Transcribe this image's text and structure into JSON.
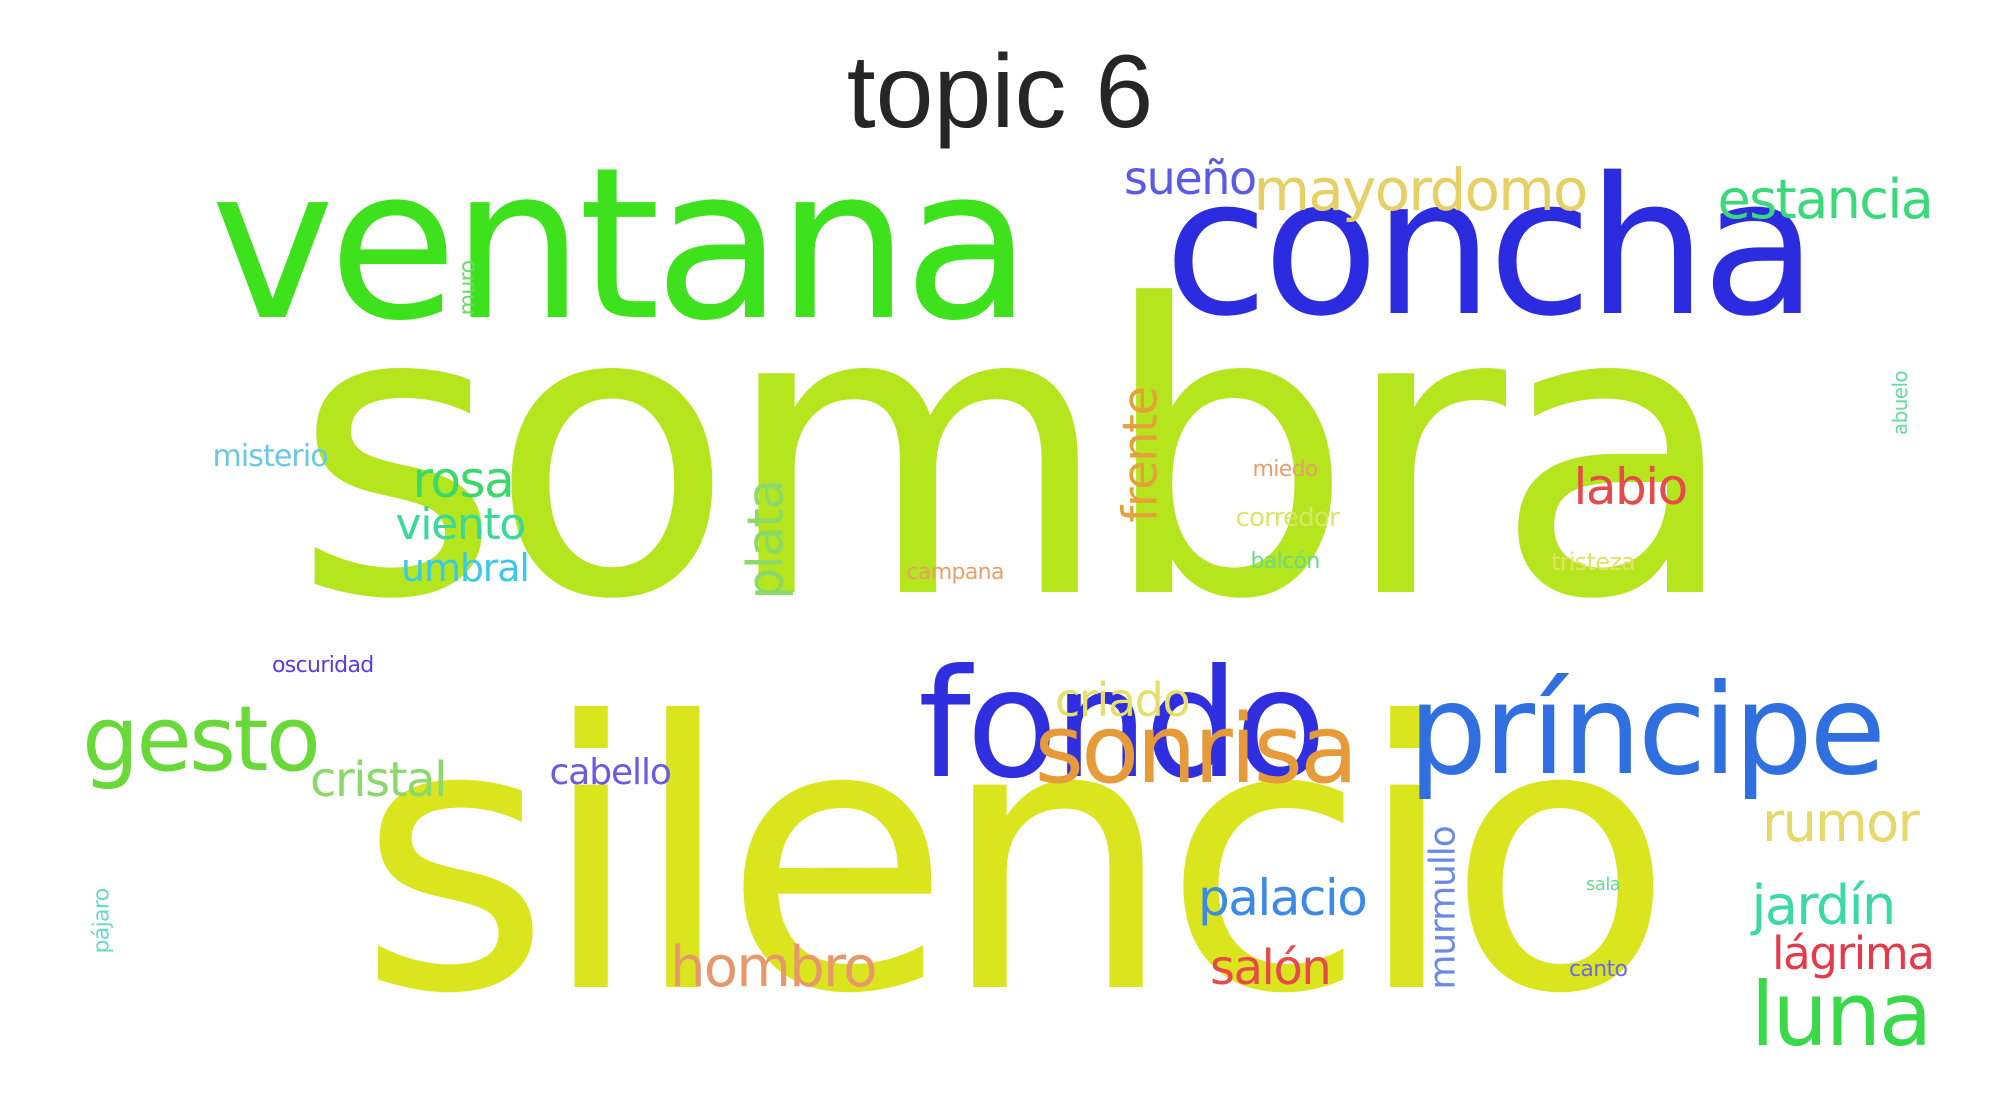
{
  "title": "topic 6",
  "words": [
    {
      "text": "sombra",
      "color": "#b5e61d"
    },
    {
      "text": "silencio",
      "color": "#dbe51e"
    },
    {
      "text": "ventana",
      "color": "#3de21c"
    },
    {
      "text": "concha",
      "color": "#2b2be0"
    },
    {
      "text": "fondo",
      "color": "#2f2fe0"
    },
    {
      "text": "príncipe",
      "color": "#2f6fe0"
    },
    {
      "text": "sonrisa",
      "color": "#e69a38"
    },
    {
      "text": "gesto",
      "color": "#69d93a"
    },
    {
      "text": "luna",
      "color": "#3ad94a"
    },
    {
      "text": "estancia",
      "color": "#3ad97a"
    },
    {
      "text": "mayordomo",
      "color": "#e6cf63"
    },
    {
      "text": "sueño",
      "color": "#5a5ae6"
    },
    {
      "text": "rumor",
      "color": "#e6d96a"
    },
    {
      "text": "jardín",
      "color": "#3ad9a5"
    },
    {
      "text": "lágrima",
      "color": "#e63a4a"
    },
    {
      "text": "hombro",
      "color": "#e6986a"
    },
    {
      "text": "palacio",
      "color": "#3a8ae6"
    },
    {
      "text": "salón",
      "color": "#e64a4a"
    },
    {
      "text": "labio",
      "color": "#e64a4a"
    },
    {
      "text": "criado",
      "color": "#e6e06a"
    },
    {
      "text": "cristal",
      "color": "#8ad96a"
    },
    {
      "text": "rosa",
      "color": "#3ad96a"
    },
    {
      "text": "viento",
      "color": "#3ad99a"
    },
    {
      "text": "umbral",
      "color": "#3acae6"
    },
    {
      "text": "plata",
      "color": "#8ad96a"
    },
    {
      "text": "frente",
      "color": "#e6a03a"
    },
    {
      "text": "misterio",
      "color": "#6ac8e6"
    },
    {
      "text": "cabello",
      "color": "#6a5ae6"
    },
    {
      "text": "murmullo",
      "color": "#6a8ae6"
    },
    {
      "text": "oscuridad",
      "color": "#5a3ae6"
    },
    {
      "text": "muro",
      "color": "#6ad96a"
    },
    {
      "text": "abuelo",
      "color": "#6ad9a5"
    },
    {
      "text": "miedo",
      "color": "#e6a06a"
    },
    {
      "text": "corredor",
      "color": "#d9e66a"
    },
    {
      "text": "balcón",
      "color": "#6ad98a"
    },
    {
      "text": "tristeza",
      "color": "#e6e06a"
    },
    {
      "text": "campana",
      "color": "#e6a06a"
    },
    {
      "text": "sala",
      "color": "#6ad98a"
    },
    {
      "text": "canto",
      "color": "#6a6ae6"
    },
    {
      "text": "pájaro",
      "color": "#6ad9c8"
    }
  ]
}
